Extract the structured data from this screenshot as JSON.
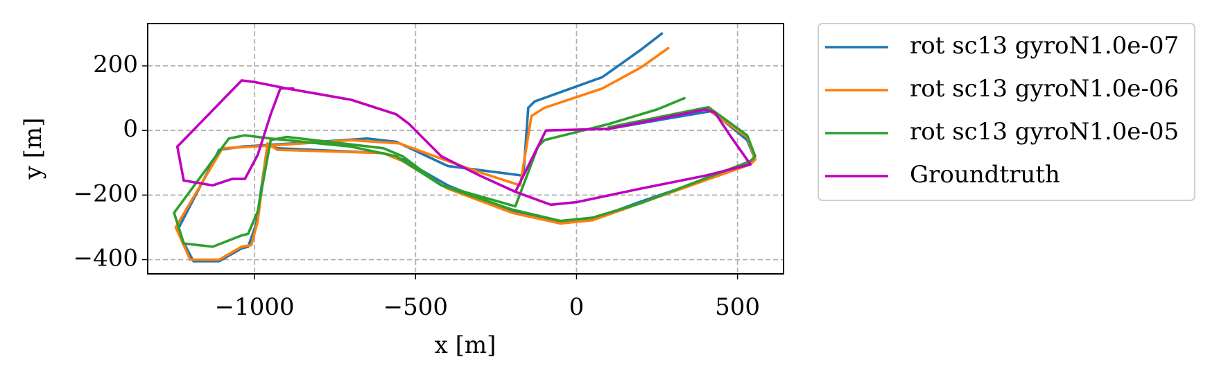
{
  "chart_data": {
    "type": "line",
    "xlabel": "x [m]",
    "ylabel": "y [m]",
    "xlim": [
      -1332,
      643
    ],
    "ylim": [
      -444,
      331
    ],
    "xticks": [
      {
        "value": -1000,
        "label": "−1000"
      },
      {
        "value": -500,
        "label": "−500"
      },
      0,
      500
    ],
    "yticks": [
      {
        "value": -400,
        "label": "−400"
      },
      {
        "value": -200,
        "label": "−200"
      },
      0,
      200
    ],
    "grid": true,
    "legend": "outside upper right",
    "series": [
      {
        "name": "rot sc13 gyroN1.0e-07",
        "color": "#1f77b4",
        "x": [
          265,
          200,
          80,
          -130,
          -150,
          -165,
          -400,
          -560,
          -650,
          -800,
          -1040,
          -1110,
          -1240,
          -1190,
          -1110,
          -1040,
          -1020,
          -995,
          -960,
          -930,
          -600,
          -540,
          -400,
          -200,
          -50,
          50,
          200,
          540,
          555,
          530,
          420,
          300,
          100
        ],
        "values": [
          300,
          250,
          165,
          90,
          70,
          -140,
          -110,
          -35,
          -25,
          -35,
          -50,
          -60,
          -310,
          -405,
          -405,
          -365,
          -360,
          -290,
          -45,
          -55,
          -70,
          -90,
          -170,
          -250,
          -285,
          -275,
          -220,
          -105,
          -90,
          -30,
          60,
          40,
          5
        ]
      },
      {
        "name": "rot sc13 gyroN1.0e-06",
        "color": "#ff7f0e",
        "x": [
          285,
          200,
          80,
          -100,
          -140,
          -175,
          -330,
          -550,
          -700,
          -1000,
          -1100,
          -1245,
          -1200,
          -1110,
          -1040,
          -1010,
          -990,
          -960,
          -930,
          -600,
          -540,
          -400,
          -200,
          -50,
          50,
          200,
          540,
          555,
          530,
          400,
          250,
          100
        ],
        "values": [
          255,
          195,
          130,
          70,
          45,
          -170,
          -120,
          -40,
          -30,
          -50,
          -55,
          -300,
          -400,
          -400,
          -360,
          -355,
          -280,
          -40,
          -60,
          -70,
          -95,
          -180,
          -255,
          -288,
          -278,
          -225,
          -105,
          -90,
          -20,
          70,
          40,
          5
        ]
      },
      {
        "name": "rot sc13 gyroN1.0e-05",
        "color": "#2ca02c",
        "x": [
          335,
          250,
          100,
          -100,
          -120,
          -190,
          -420,
          -560,
          -700,
          -950,
          -1030,
          -1080,
          -1250,
          -1220,
          -1130,
          -1040,
          -1020,
          -990,
          -950,
          -900,
          -600,
          -540,
          -420,
          -200,
          -50,
          50,
          200,
          540,
          555,
          530,
          410,
          300,
          100
        ],
        "values": [
          100,
          65,
          20,
          -30,
          -50,
          -235,
          -170,
          -80,
          -50,
          -25,
          -15,
          -25,
          -255,
          -350,
          -360,
          -325,
          -320,
          -250,
          -30,
          -20,
          -55,
          -80,
          -170,
          -245,
          -280,
          -270,
          -225,
          -95,
          -80,
          -15,
          72,
          50,
          10
        ]
      },
      {
        "name": "Groundtruth",
        "color": "#bf00bf",
        "x": [
          -190,
          -140,
          -95,
          100,
          250,
          400,
          430,
          480,
          540,
          400,
          200,
          0,
          -80,
          -190,
          -300,
          -420,
          -520,
          -560,
          -700,
          -900,
          -1000,
          -1040,
          -1240,
          -1220,
          -1130,
          -1070,
          -1030,
          -990,
          -950,
          -920,
          -880
        ],
        "values": [
          -190,
          -90,
          0,
          5,
          35,
          65,
          55,
          -20,
          -105,
          -140,
          -180,
          -222,
          -230,
          -190,
          -140,
          -80,
          20,
          50,
          95,
          130,
          150,
          155,
          -50,
          -155,
          -170,
          -150,
          -150,
          -75,
          50,
          130,
          130
        ]
      }
    ]
  }
}
